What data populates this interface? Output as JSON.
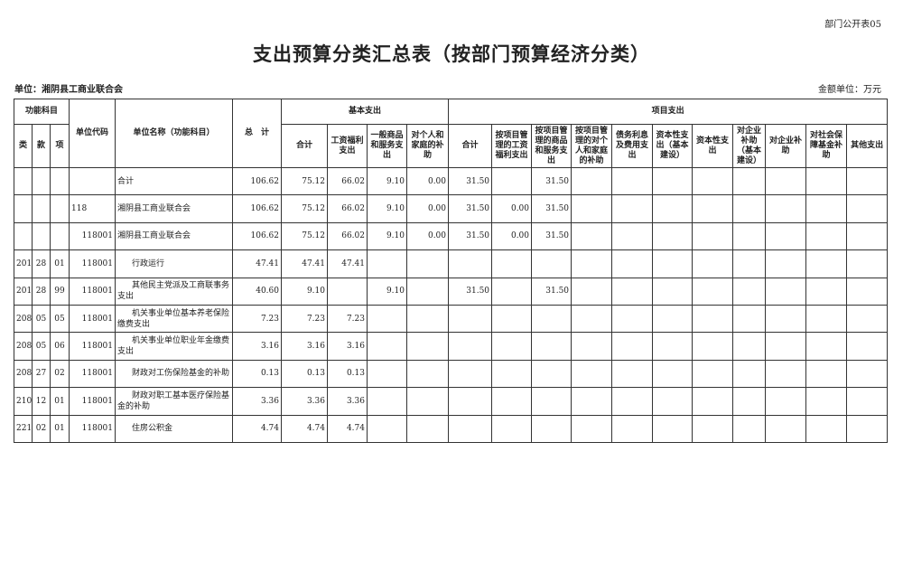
{
  "ref": "部门公开表05",
  "title": "支出预算分类汇总表（按部门预算经济分类）",
  "unit": "单位：湘阴县工商业联合会",
  "amount_unit": "金额单位：万元",
  "header": {
    "func": "功能科目",
    "lei": "类",
    "kuan": "款",
    "xiang": "项",
    "code": "单位代码",
    "name": "单位名称（功能科目）",
    "total": "总　计",
    "basic": "基本支出",
    "project": "项目支出",
    "basic_cols": [
      "合计",
      "工资福利支出",
      "一般商品和服务支出",
      "对个人和家庭的补助"
    ],
    "project_cols": [
      "合计",
      "按项目管理的工资福利支出",
      "按项目管理的商品和服务支出",
      "按项目管理的对个人和家庭的补助",
      "债务利息及费用支出",
      "资本性支出（基本建设）",
      "资本性支出",
      "对企业补助（基本建设）",
      "对企业补助",
      "对社会保障基金补助",
      "其他支出"
    ]
  },
  "rows": [
    [
      "",
      "",
      "",
      "",
      "合计",
      "106.62",
      "75.12",
      "66.02",
      "9.10",
      "0.00",
      "31.50",
      "",
      "31.50",
      "",
      "",
      "",
      "",
      "",
      "",
      "",
      ""
    ],
    [
      "",
      "",
      "",
      "118",
      "湘阴县工商业联合会",
      "106.62",
      "75.12",
      "66.02",
      "9.10",
      "0.00",
      "31.50",
      "0.00",
      "31.50",
      "",
      "",
      "",
      "",
      "",
      "",
      "",
      ""
    ],
    [
      "",
      "",
      "",
      "118001",
      "湘阴县工商业联合会",
      "106.62",
      "75.12",
      "66.02",
      "9.10",
      "0.00",
      "31.50",
      "0.00",
      "31.50",
      "",
      "",
      "",
      "",
      "",
      "",
      "",
      ""
    ],
    [
      "201",
      "28",
      "01",
      "118001",
      "行政运行",
      "47.41",
      "47.41",
      "47.41",
      "",
      "",
      "",
      "",
      "",
      "",
      "",
      "",
      "",
      "",
      "",
      "",
      ""
    ],
    [
      "201",
      "28",
      "99",
      "118001",
      "其他民主党派及工商联事务支出",
      "40.60",
      "9.10",
      "",
      "9.10",
      "",
      "31.50",
      "",
      "31.50",
      "",
      "",
      "",
      "",
      "",
      "",
      "",
      ""
    ],
    [
      "208",
      "05",
      "05",
      "118001",
      "机关事业单位基本养老保险缴费支出",
      "7.23",
      "7.23",
      "7.23",
      "",
      "",
      "",
      "",
      "",
      "",
      "",
      "",
      "",
      "",
      "",
      "",
      ""
    ],
    [
      "208",
      "05",
      "06",
      "118001",
      "机关事业单位职业年金缴费支出",
      "3.16",
      "3.16",
      "3.16",
      "",
      "",
      "",
      "",
      "",
      "",
      "",
      "",
      "",
      "",
      "",
      "",
      ""
    ],
    [
      "208",
      "27",
      "02",
      "118001",
      "财政对工伤保险基金的补助",
      "0.13",
      "0.13",
      "0.13",
      "",
      "",
      "",
      "",
      "",
      "",
      "",
      "",
      "",
      "",
      "",
      "",
      ""
    ],
    [
      "210",
      "12",
      "01",
      "118001",
      "财政对职工基本医疗保险基金的补助",
      "3.36",
      "3.36",
      "3.36",
      "",
      "",
      "",
      "",
      "",
      "",
      "",
      "",
      "",
      "",
      "",
      "",
      ""
    ],
    [
      "221",
      "02",
      "01",
      "118001",
      "住房公积金",
      "4.74",
      "4.74",
      "4.74",
      "",
      "",
      "",
      "",
      "",
      "",
      "",
      "",
      "",
      "",
      "",
      "",
      ""
    ]
  ]
}
